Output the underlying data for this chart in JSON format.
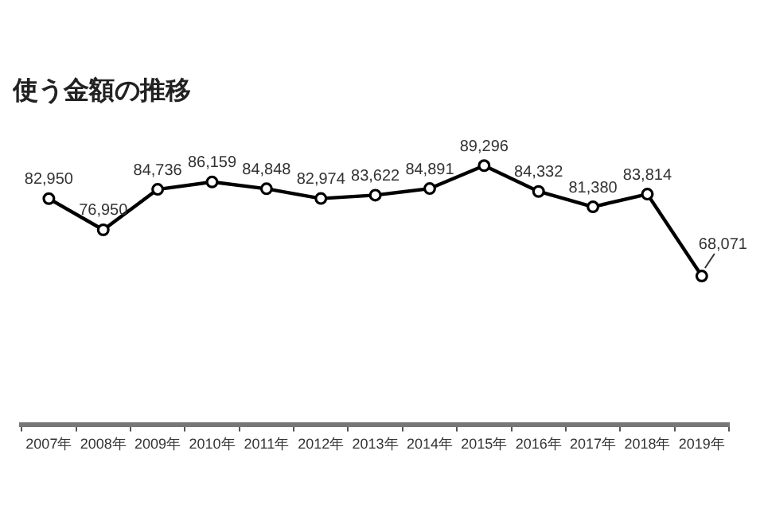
{
  "chart_data": {
    "type": "line",
    "title": "使う金額の推移",
    "categories": [
      "2007年",
      "2008年",
      "2009年",
      "2010年",
      "2011年",
      "2012年",
      "2013年",
      "2014年",
      "2015年",
      "2016年",
      "2017年",
      "2018年",
      "2019年"
    ],
    "series": [
      {
        "color": "#000000",
        "values": [
          82950,
          76950,
          84736,
          86159,
          84848,
          82974,
          83622,
          84891,
          89296,
          84332,
          81380,
          83814,
          68071
        ],
        "value_labels": [
          "82,950",
          "76,950",
          "84,736",
          "86,159",
          "84,848",
          "82,974",
          "83,622",
          "84,891",
          "89,296",
          "84,332",
          "81,380",
          "83,814",
          "68,071"
        ]
      }
    ],
    "marker": "circle",
    "legend": false,
    "grid": false
  }
}
